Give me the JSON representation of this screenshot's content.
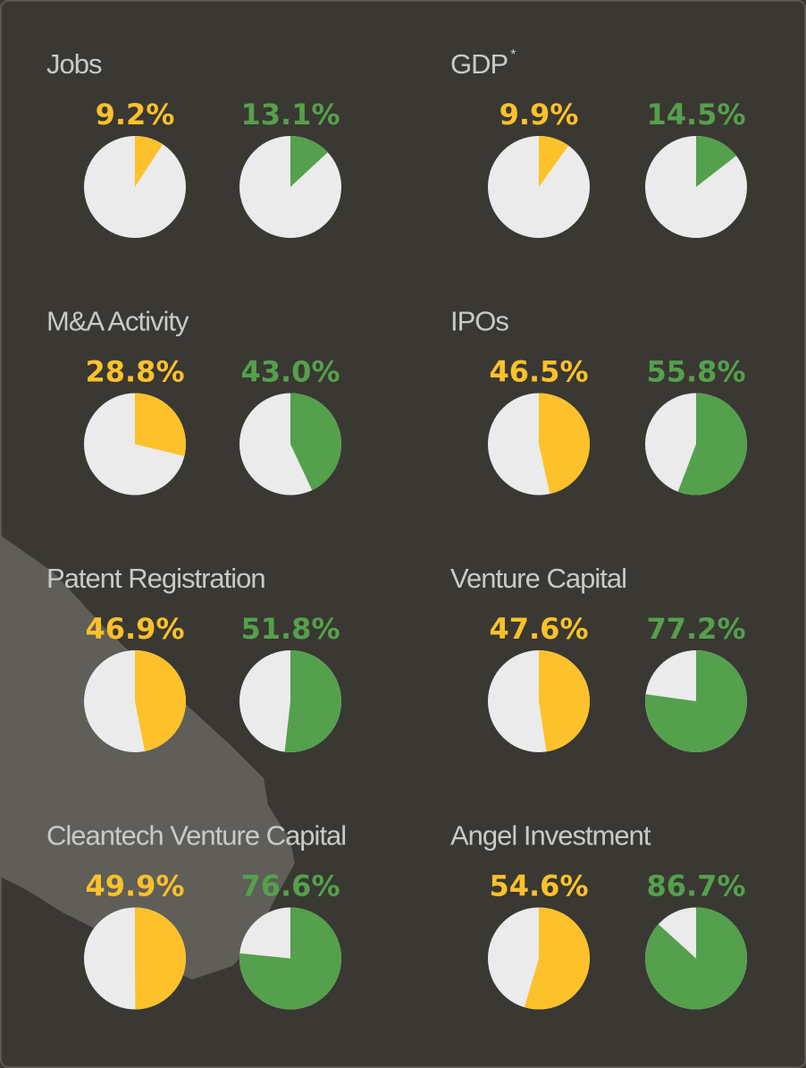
{
  "chart_data": [
    {
      "type": "pie",
      "title": "Jobs",
      "series": [
        {
          "color": "#fcc12b",
          "values": [
            9.2
          ],
          "value_labels": [
            "9.2%"
          ]
        },
        {
          "color": "#55a04c",
          "values": [
            13.1
          ],
          "value_labels": [
            "13.1%"
          ]
        }
      ]
    },
    {
      "type": "pie",
      "title": "GDP",
      "title_note": "*",
      "series": [
        {
          "color": "#fcc12b",
          "values": [
            9.9
          ],
          "value_labels": [
            "9.9%"
          ]
        },
        {
          "color": "#55a04c",
          "values": [
            14.5
          ],
          "value_labels": [
            "14.5%"
          ]
        }
      ]
    },
    {
      "type": "pie",
      "title": "M&A Activity",
      "series": [
        {
          "color": "#fcc12b",
          "values": [
            28.8
          ],
          "value_labels": [
            "28.8%"
          ]
        },
        {
          "color": "#55a04c",
          "values": [
            43.0
          ],
          "value_labels": [
            "43.0%"
          ]
        }
      ]
    },
    {
      "type": "pie",
      "title": "IPOs",
      "series": [
        {
          "color": "#fcc12b",
          "values": [
            46.5
          ],
          "value_labels": [
            "46.5%"
          ]
        },
        {
          "color": "#55a04c",
          "values": [
            55.8
          ],
          "value_labels": [
            "55.8%"
          ]
        }
      ]
    },
    {
      "type": "pie",
      "title": "Patent Registration",
      "series": [
        {
          "color": "#fcc12b",
          "values": [
            46.9
          ],
          "value_labels": [
            "46.9%"
          ]
        },
        {
          "color": "#55a04c",
          "values": [
            51.8
          ],
          "value_labels": [
            "51.8%"
          ]
        }
      ]
    },
    {
      "type": "pie",
      "title": "Venture Capital",
      "series": [
        {
          "color": "#fcc12b",
          "values": [
            47.6
          ],
          "value_labels": [
            "47.6%"
          ]
        },
        {
          "color": "#55a04c",
          "values": [
            77.2
          ],
          "value_labels": [
            "77.2%"
          ]
        }
      ]
    },
    {
      "type": "pie",
      "title": "Cleantech Venture Capital",
      "series": [
        {
          "color": "#fcc12b",
          "values": [
            49.9
          ],
          "value_labels": [
            "49.9%"
          ]
        },
        {
          "color": "#55a04c",
          "values": [
            76.6
          ],
          "value_labels": [
            "76.6%"
          ]
        }
      ]
    },
    {
      "type": "pie",
      "title": "Angel Investment",
      "series": [
        {
          "color": "#fcc12b",
          "values": [
            54.6
          ],
          "value_labels": [
            "54.6%"
          ]
        },
        {
          "color": "#55a04c",
          "values": [
            86.7
          ],
          "value_labels": [
            "86.7%"
          ]
        }
      ]
    }
  ]
}
